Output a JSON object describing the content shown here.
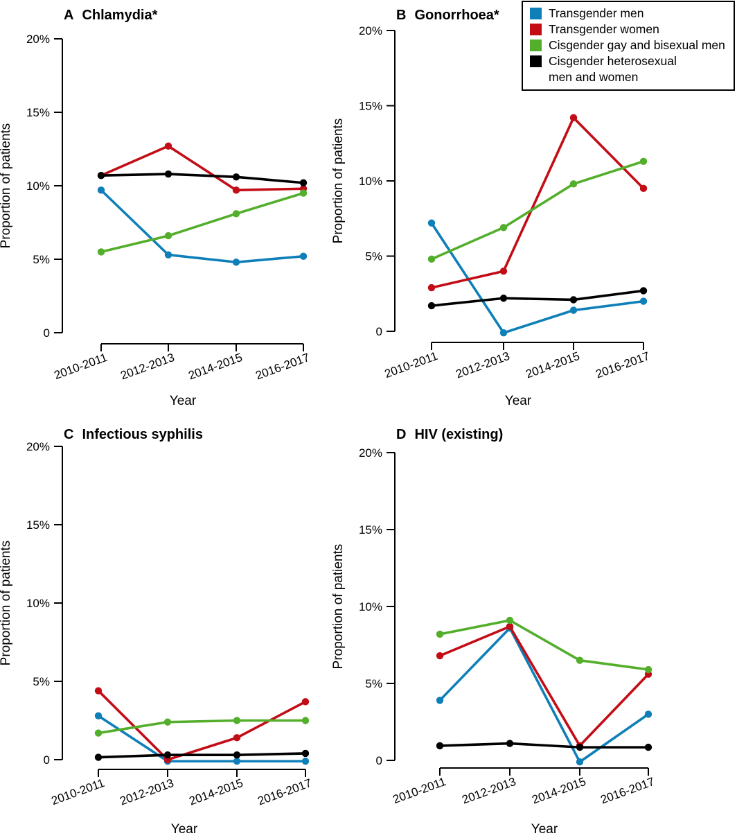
{
  "figure": {
    "y_axis_label": "Proportion of patients",
    "x_axis_label": "Year",
    "y_tick_labels": [
      "20%",
      "15%",
      "10%",
      "5%",
      "0"
    ],
    "y_tick_values": [
      20,
      15,
      10,
      5,
      0
    ],
    "categories": [
      "2010-2011",
      "2012-2013",
      "2014-2015",
      "2016-2017"
    ]
  },
  "legend": {
    "items": [
      {
        "label": "Transgender men",
        "color": "#0e7fb8"
      },
      {
        "label": "Transgender women",
        "color": "#c30d16"
      },
      {
        "label": "Cisgender gay and bisexual men",
        "color": "#53ae2b"
      },
      {
        "label": "Cisgender heterosexual men and women",
        "label_line1": "Cisgender heterosexual",
        "label_line2": "men and women",
        "color": "#000000"
      }
    ]
  },
  "chart_data": [
    {
      "type": "line",
      "panel_label": "A",
      "title": "Chlamydia*",
      "xlabel": "Year",
      "ylabel": "Proportion of patients",
      "x": [
        "2010-2011",
        "2012-2013",
        "2014-2015",
        "2016-2017"
      ],
      "ylim": [
        0,
        20
      ],
      "yticks": [
        0,
        5,
        10,
        15,
        20
      ],
      "legend_position": "none",
      "grid": false,
      "series": [
        {
          "name": "Transgender men",
          "color": "#0e7fb8",
          "values": [
            9.7,
            5.3,
            4.8,
            5.2
          ]
        },
        {
          "name": "Transgender women",
          "color": "#c30d16",
          "values": [
            10.7,
            12.7,
            9.7,
            9.8
          ]
        },
        {
          "name": "Cisgender gay and bisexual men",
          "color": "#53ae2b",
          "values": [
            5.5,
            6.6,
            8.1,
            9.5
          ]
        },
        {
          "name": "Cisgender heterosexual men and women",
          "color": "#000000",
          "values": [
            10.7,
            10.8,
            10.6,
            10.2
          ]
        }
      ]
    },
    {
      "type": "line",
      "panel_label": "B",
      "title": "Gonorrhoea*",
      "xlabel": "Year",
      "ylabel": "Proportion of patients",
      "x": [
        "2010-2011",
        "2012-2013",
        "2014-2015",
        "2016-2017"
      ],
      "ylim": [
        0,
        20
      ],
      "yticks": [
        0,
        5,
        10,
        15,
        20
      ],
      "legend_position": "top-right",
      "grid": false,
      "series": [
        {
          "name": "Transgender men",
          "color": "#0e7fb8",
          "values": [
            7.2,
            -0.1,
            1.4,
            2.0
          ]
        },
        {
          "name": "Transgender women",
          "color": "#c30d16",
          "values": [
            2.9,
            4.0,
            14.2,
            9.5
          ]
        },
        {
          "name": "Cisgender gay and bisexual men",
          "color": "#53ae2b",
          "values": [
            4.8,
            6.9,
            9.8,
            11.3
          ]
        },
        {
          "name": "Cisgender heterosexual men and women",
          "color": "#000000",
          "values": [
            1.7,
            2.2,
            2.1,
            2.7
          ]
        }
      ]
    },
    {
      "type": "line",
      "panel_label": "C",
      "title": "Infectious syphilis",
      "xlabel": "Year",
      "ylabel": "Proportion of patients",
      "x": [
        "2010-2011",
        "2012-2013",
        "2014-2015",
        "2016-2017"
      ],
      "ylim": [
        0,
        20
      ],
      "yticks": [
        0,
        5,
        10,
        15,
        20
      ],
      "legend_position": "none",
      "grid": false,
      "series": [
        {
          "name": "Transgender men",
          "color": "#0e7fb8",
          "values": [
            2.8,
            -0.1,
            -0.1,
            -0.1
          ]
        },
        {
          "name": "Transgender women",
          "color": "#c30d16",
          "values": [
            4.4,
            0.0,
            1.4,
            3.7
          ]
        },
        {
          "name": "Cisgender gay and bisexual men",
          "color": "#53ae2b",
          "values": [
            1.7,
            2.4,
            2.5,
            2.5
          ]
        },
        {
          "name": "Cisgender heterosexual men and women",
          "color": "#000000",
          "values": [
            0.15,
            0.3,
            0.3,
            0.4
          ]
        }
      ]
    },
    {
      "type": "line",
      "panel_label": "D",
      "title": "HIV (existing)",
      "xlabel": "Year",
      "ylabel": "Proportion of patients",
      "x": [
        "2010-2011",
        "2012-2013",
        "2014-2015",
        "2016-2017"
      ],
      "ylim": [
        0,
        20
      ],
      "yticks": [
        0,
        5,
        10,
        15,
        20
      ],
      "legend_position": "none",
      "grid": false,
      "series": [
        {
          "name": "Transgender men",
          "color": "#0e7fb8",
          "values": [
            3.9,
            8.6,
            -0.1,
            3.0
          ]
        },
        {
          "name": "Transgender women",
          "color": "#c30d16",
          "values": [
            6.8,
            8.7,
            0.95,
            5.6
          ]
        },
        {
          "name": "Cisgender gay and bisexual men",
          "color": "#53ae2b",
          "values": [
            8.2,
            9.1,
            6.5,
            5.9
          ]
        },
        {
          "name": "Cisgender heterosexual men and women",
          "color": "#000000",
          "values": [
            0.95,
            1.1,
            0.85,
            0.85
          ]
        }
      ]
    }
  ]
}
